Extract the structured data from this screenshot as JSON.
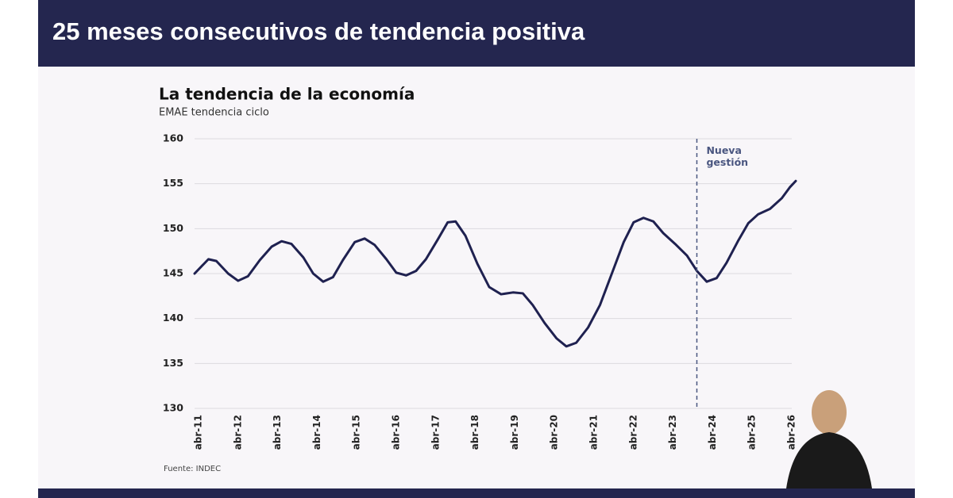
{
  "header": {
    "title": "25 meses consecutivos de tendencia positiva"
  },
  "chart_data": {
    "type": "line",
    "title": "La tendencia de la economía",
    "subtitle": "EMAE tendencia ciclo",
    "series": [
      {
        "name": "EMAE tendencia ciclo",
        "color": "#1f2150",
        "x": [
          2011.15,
          2011.5,
          2011.7,
          2012.0,
          2012.25,
          2012.5,
          2012.8,
          2013.1,
          2013.35,
          2013.6,
          2013.9,
          2014.15,
          2014.4,
          2014.65,
          2014.9,
          2015.2,
          2015.45,
          2015.7,
          2016.0,
          2016.25,
          2016.5,
          2016.75,
          2017.0,
          2017.3,
          2017.55,
          2017.75,
          2018.0,
          2018.3,
          2018.6,
          2018.9,
          2019.2,
          2019.45,
          2019.7,
          2020.0,
          2020.3,
          2020.55,
          2020.8,
          2021.1,
          2021.4,
          2021.7,
          2022.0,
          2022.25,
          2022.5,
          2022.75,
          2023.0,
          2023.3,
          2023.6,
          2023.85,
          2024.1,
          2024.35,
          2024.6,
          2024.9,
          2025.15,
          2025.4,
          2025.7,
          2026.0,
          2026.2,
          2026.35
        ],
        "values": [
          145.0,
          146.6,
          146.4,
          145.0,
          144.2,
          144.7,
          146.5,
          148.0,
          148.6,
          148.3,
          146.8,
          145.0,
          144.1,
          144.6,
          146.5,
          148.5,
          148.9,
          148.2,
          146.6,
          145.1,
          144.8,
          145.3,
          146.6,
          148.8,
          150.7,
          150.8,
          149.2,
          146.1,
          143.5,
          142.7,
          142.9,
          142.8,
          141.5,
          139.5,
          137.8,
          136.9,
          137.3,
          139.0,
          141.5,
          145.0,
          148.5,
          150.7,
          151.2,
          150.8,
          149.5,
          148.3,
          147.0,
          145.3,
          144.1,
          144.5,
          146.2,
          148.7,
          150.6,
          151.6,
          152.2,
          153.4,
          154.6,
          155.3
        ]
      }
    ],
    "xlim": [
      2011.15,
      2026.25
    ],
    "ylim": [
      130,
      160
    ],
    "yticks": [
      130,
      135,
      140,
      145,
      150,
      155,
      160
    ],
    "xticks": [
      {
        "value": 2011.25,
        "label": "abr-11"
      },
      {
        "value": 2012.25,
        "label": "abr-12"
      },
      {
        "value": 2013.25,
        "label": "abr-13"
      },
      {
        "value": 2014.25,
        "label": "abr-14"
      },
      {
        "value": 2015.25,
        "label": "abr-15"
      },
      {
        "value": 2016.25,
        "label": "abr-16"
      },
      {
        "value": 2017.25,
        "label": "abr-17"
      },
      {
        "value": 2018.25,
        "label": "abr-18"
      },
      {
        "value": 2019.25,
        "label": "abr-19"
      },
      {
        "value": 2020.25,
        "label": "abr-20"
      },
      {
        "value": 2021.25,
        "label": "abr-21"
      },
      {
        "value": 2022.25,
        "label": "abr-22"
      },
      {
        "value": 2023.25,
        "label": "abr-23"
      },
      {
        "value": 2024.25,
        "label": "abr-24"
      },
      {
        "value": 2025.25,
        "label": "abr-25"
      },
      {
        "value": 2026.25,
        "label": "abr-26"
      }
    ],
    "grid": true,
    "annotation": {
      "x": 2023.85,
      "label": "Nueva gestión"
    }
  },
  "footer": {
    "source": "Fuente: INDEC"
  }
}
